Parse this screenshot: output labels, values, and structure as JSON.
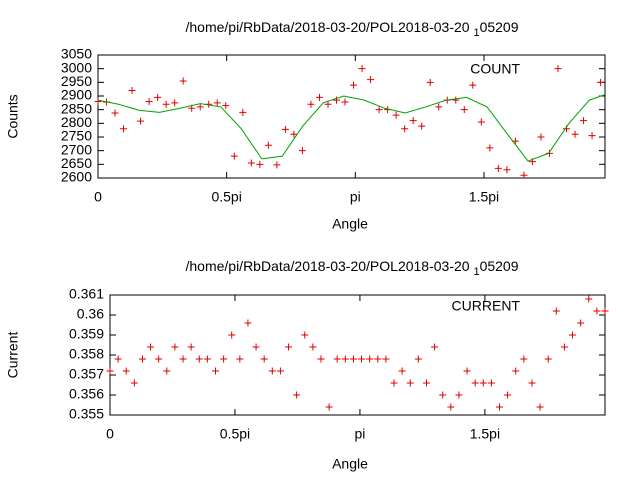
{
  "chart_data": [
    {
      "type": "scatter",
      "title": [
        "/home/pi/RbData/2018-03-20/POL2018-03-20 ",
        "1",
        "05209"
      ],
      "x_label": "Angle",
      "y_label": "Counts",
      "xlim": [
        0,
        6.19
      ],
      "ylim": [
        2600,
        3050
      ],
      "xticks": [
        0,
        {
          "value": 1.5708,
          "label": "0.5pi"
        },
        {
          "value": 3.1416,
          "label": "pi"
        },
        {
          "value": 4.7124,
          "label": "1.5pi"
        }
      ],
      "yticks": [
        2600,
        2650,
        2700,
        2750,
        2800,
        2850,
        2900,
        2950,
        3000,
        3050
      ],
      "series": [
        {
          "name": "COUNT",
          "color": "#e00000",
          "marker": "plus",
          "x": [
            0,
            0.104,
            0.208,
            0.312,
            0.416,
            0.52,
            0.624,
            0.728,
            0.832,
            0.936,
            1.04,
            1.144,
            1.248,
            1.352,
            1.456,
            1.56,
            1.664,
            1.768,
            1.872,
            1.976,
            2.08,
            2.184,
            2.288,
            2.392,
            2.496,
            2.6,
            2.704,
            2.808,
            2.912,
            3.016,
            3.12,
            3.224,
            3.328,
            3.432,
            3.536,
            3.64,
            3.744,
            3.848,
            3.952,
            4.056,
            4.16,
            4.264,
            4.368,
            4.472,
            4.576,
            4.68,
            4.784,
            4.888,
            4.992,
            5.096,
            5.2,
            5.304,
            5.408,
            5.512,
            5.616,
            5.72,
            5.824,
            5.928,
            6.032,
            6.136
          ],
          "values": [
            2880,
            2878,
            2838,
            2780,
            2920,
            2808,
            2880,
            2895,
            2870,
            2875,
            2955,
            2855,
            2860,
            2870,
            2875,
            2865,
            2680,
            2840,
            2655,
            2650,
            2720,
            2648,
            2778,
            2760,
            2700,
            2870,
            2895,
            2870,
            2885,
            2878,
            2940,
            3000,
            2960,
            2850,
            2850,
            2830,
            2780,
            2810,
            2790,
            2950,
            2860,
            2885,
            2885,
            2850,
            2940,
            2805,
            2710,
            2635,
            2630,
            2735,
            2610,
            2660,
            2750,
            2690,
            3000,
            2780,
            2760,
            2810,
            2755,
            2950
          ]
        },
        {
          "color": "#00a000",
          "marker": "line",
          "x": [
            0,
            0.25,
            0.5,
            0.75,
            1,
            1.25,
            1.5,
            1.75,
            2,
            2.25,
            2.5,
            2.75,
            3,
            3.25,
            3.5,
            3.75,
            4,
            4.25,
            4.5,
            4.75,
            5,
            5.25,
            5.5,
            5.75,
            6,
            6.19
          ],
          "values": [
            2885,
            2870,
            2848,
            2840,
            2855,
            2872,
            2860,
            2780,
            2670,
            2680,
            2790,
            2875,
            2900,
            2885,
            2855,
            2838,
            2860,
            2885,
            2895,
            2860,
            2760,
            2662,
            2690,
            2800,
            2885,
            2905
          ]
        }
      ]
    },
    {
      "type": "scatter",
      "title": [
        "/home/pi/RbData/2018-03-20/POL2018-03-20 ",
        "1",
        "05209"
      ],
      "x_label": "Angle",
      "y_label": "Current",
      "xlim": [
        0,
        6.222
      ],
      "ylim": [
        0.355,
        0.361
      ],
      "xticks": [
        0,
        {
          "value": 1.5708,
          "label": "0.5pi"
        },
        {
          "value": 3.1416,
          "label": "pi"
        },
        {
          "value": 4.7124,
          "label": "1.5pi"
        }
      ],
      "yticks": [
        0.355,
        0.356,
        0.357,
        0.358,
        0.359,
        0.36,
        0.361
      ],
      "series": [
        {
          "name": "CURRENT",
          "color": "#e00000",
          "marker": "plus",
          "x": [
            0,
            0.102,
            0.204,
            0.306,
            0.408,
            0.51,
            0.612,
            0.714,
            0.816,
            0.918,
            1.02,
            1.122,
            1.224,
            1.326,
            1.428,
            1.53,
            1.632,
            1.734,
            1.836,
            1.938,
            2.04,
            2.142,
            2.244,
            2.346,
            2.448,
            2.55,
            2.652,
            2.754,
            2.856,
            2.958,
            3.06,
            3.162,
            3.264,
            3.366,
            3.468,
            3.57,
            3.672,
            3.774,
            3.876,
            3.978,
            4.08,
            4.182,
            4.284,
            4.386,
            4.488,
            4.59,
            4.692,
            4.794,
            4.896,
            4.998,
            5.1,
            5.202,
            5.304,
            5.406,
            5.508,
            5.61,
            5.712,
            5.814,
            5.916,
            6.018,
            6.12,
            6.222
          ],
          "values": [
            0.3572,
            0.3578,
            0.3572,
            0.3566,
            0.3578,
            0.3584,
            0.3578,
            0.3572,
            0.3584,
            0.3578,
            0.3584,
            0.3578,
            0.3578,
            0.3572,
            0.3578,
            0.359,
            0.3578,
            0.3596,
            0.3584,
            0.3578,
            0.3572,
            0.3572,
            0.3584,
            0.356,
            0.359,
            0.3584,
            0.3578,
            0.3554,
            0.3578,
            0.3578,
            0.3578,
            0.3578,
            0.3578,
            0.3578,
            0.3578,
            0.3566,
            0.3572,
            0.3566,
            0.3578,
            0.3566,
            0.3584,
            0.356,
            0.3554,
            0.356,
            0.3572,
            0.3566,
            0.3566,
            0.3566,
            0.3554,
            0.356,
            0.3572,
            0.3578,
            0.3566,
            0.3554,
            0.3578,
            0.3602,
            0.3584,
            0.359,
            0.3596,
            0.3608,
            0.3602,
            0.3602
          ]
        }
      ]
    }
  ]
}
